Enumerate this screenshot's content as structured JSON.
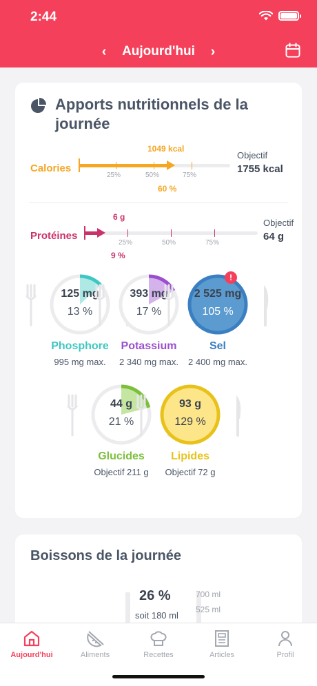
{
  "status": {
    "time": "2:44"
  },
  "nav": {
    "title": "Aujourd'hui",
    "prev": "‹",
    "next": "›"
  },
  "nutrition": {
    "title": "Apports nutritionnels de la journée",
    "calories": {
      "label": "Calories",
      "value": "1049 kcal",
      "percent": "60 %",
      "fraction": 0.6,
      "objective_label": "Objectif",
      "objective": "1755 kcal",
      "ticks": [
        "25%",
        "50%",
        "75%"
      ],
      "color": "#f5a623"
    },
    "proteins": {
      "label": "Protéines",
      "value": "6 g",
      "percent": "9 %",
      "fraction": 0.09,
      "objective_label": "Objectif",
      "objective": "64 g",
      "ticks": [
        "25%",
        "50%",
        "75%"
      ],
      "color": "#c9336b"
    },
    "gauges": [
      {
        "value": "125 mg",
        "percent": "13 %",
        "fraction": 0.13,
        "name": "Phosphore",
        "sub": "995 mg max.",
        "color": "#3ec7c2",
        "fill": "#aee9e6"
      },
      {
        "value": "393 mg",
        "percent": "17 %",
        "fraction": 0.17,
        "name": "Potassium",
        "sub": "2 340 mg max.",
        "color": "#9b4fce",
        "fill": "#d4b3ec"
      },
      {
        "value": "2 525 mg",
        "percent": "105 %",
        "fraction": 1.05,
        "name": "Sel",
        "sub": "2 400 mg max.",
        "color": "#3a7fc1",
        "fill": "#5b9bd0",
        "alert": "!"
      },
      {
        "value": "44 g",
        "percent": "21 %",
        "fraction": 0.21,
        "name": "Glucides",
        "sub": "Objectif 211 g",
        "color": "#7cbf3a",
        "fill": "#c4e6a2"
      },
      {
        "value": "93 g",
        "percent": "129 %",
        "fraction": 1.29,
        "name": "Lipides",
        "sub": "Objectif 72 g",
        "color": "#e8c21a",
        "fill": "#fde58a"
      }
    ]
  },
  "drinks": {
    "title": "Boissons de la journée",
    "percent": "26 %",
    "sub": "soit 180 ml",
    "scale": [
      "700 ml",
      "525 ml"
    ]
  },
  "tabs": [
    {
      "label": "Aujourd'hui",
      "icon": "home-icon",
      "active": true
    },
    {
      "label": "Aliments",
      "icon": "melon-icon"
    },
    {
      "label": "Recettes",
      "icon": "chef-hat-icon"
    },
    {
      "label": "Articles",
      "icon": "newspaper-icon"
    },
    {
      "label": "Profil",
      "icon": "person-icon"
    }
  ],
  "colors": {
    "brand": "#f4405a",
    "text": "#4a5565"
  }
}
